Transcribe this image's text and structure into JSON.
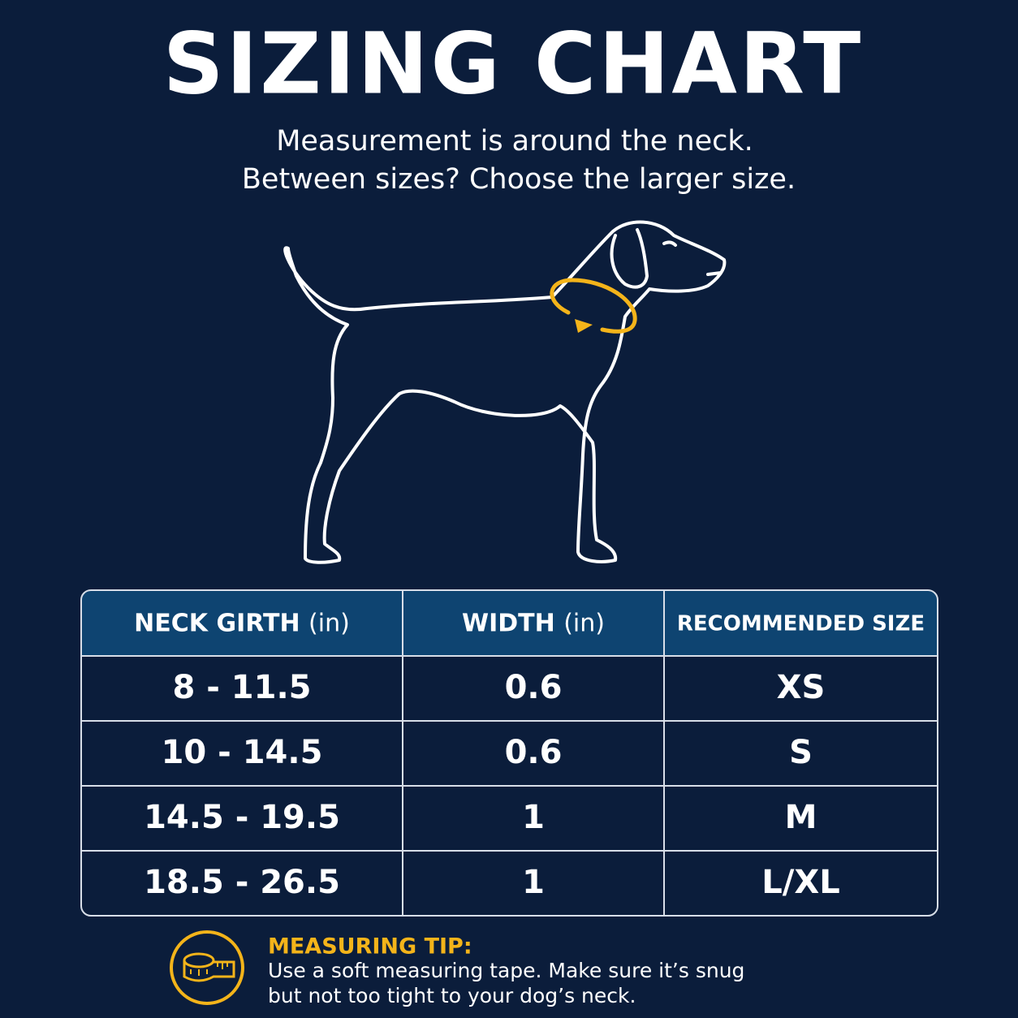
{
  "header": {
    "title": "SIZING CHART",
    "subtitle": [
      "Measurement is around the neck.",
      "Between sizes? Choose the larger size."
    ]
  },
  "table": {
    "columns": [
      {
        "label": "NECK GIRTH",
        "unit": "(in)"
      },
      {
        "label": "WIDTH",
        "unit": "(in)"
      },
      {
        "label": "RECOMMENDED SIZE"
      }
    ],
    "rows": [
      [
        "8 - 11.5",
        "0.6",
        "XS"
      ],
      [
        "10 - 14.5",
        "0.6",
        "S"
      ],
      [
        "14.5 - 19.5",
        "1",
        "M"
      ],
      [
        "18.5 - 26.5",
        "1",
        "L/XL"
      ]
    ]
  },
  "tip": {
    "title": "MEASURING TIP:",
    "lines": [
      "Use a soft measuring tape. Make sure it’s snug",
      "but not too tight to your dog’s neck."
    ]
  }
}
